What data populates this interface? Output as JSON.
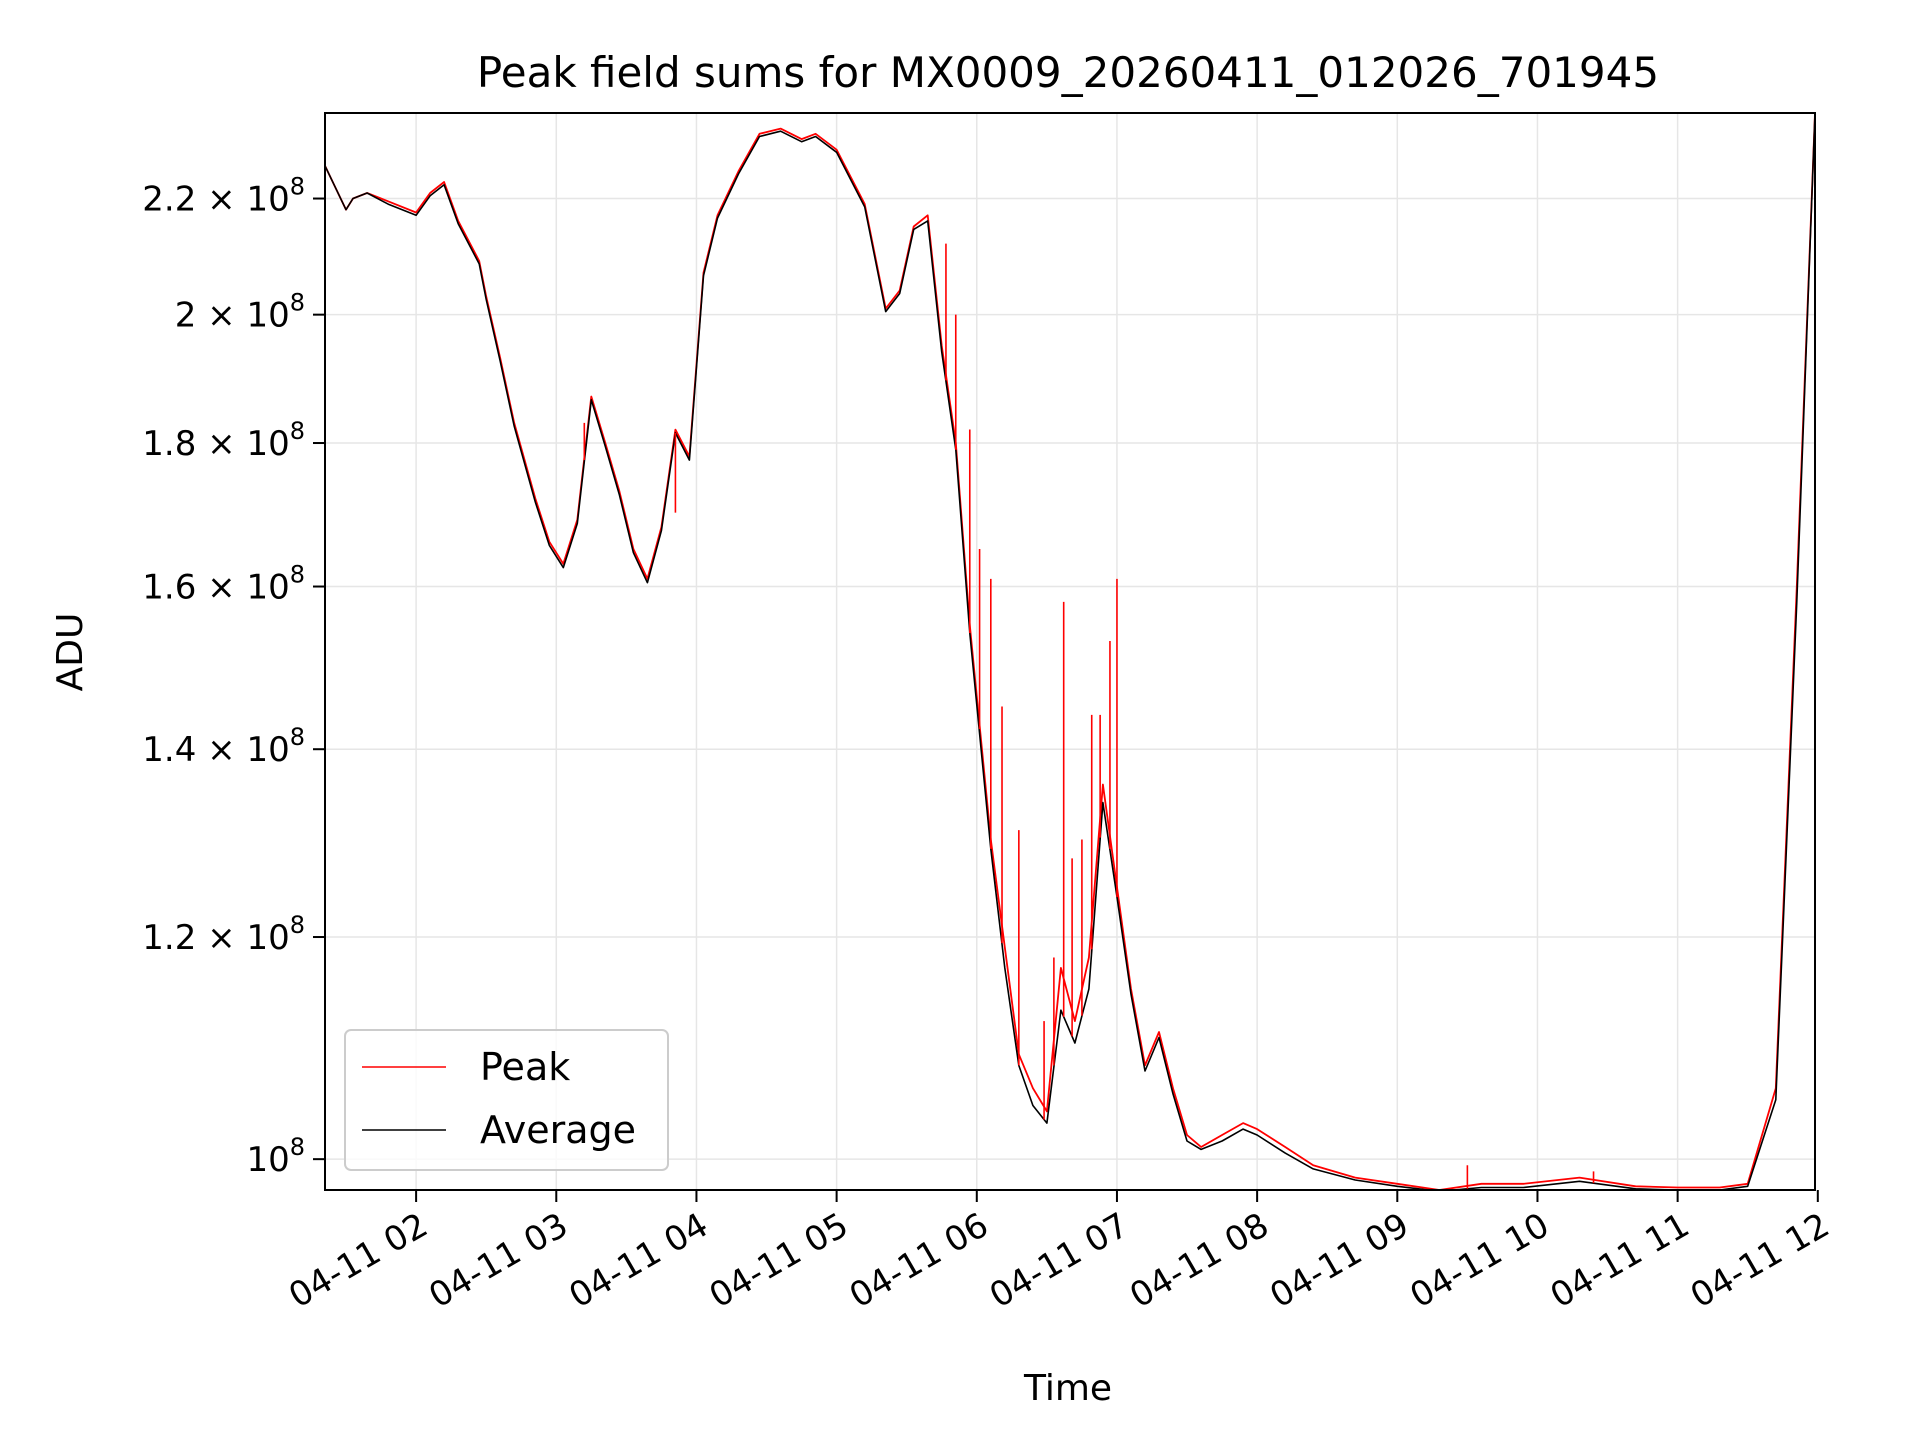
{
  "chart_data": {
    "type": "line",
    "title": "Peak field sums for MX0009_20260411_012026_701945",
    "xlabel": "Time",
    "ylabel": "ADU",
    "yscale": "log",
    "grid": true,
    "legend_position": "lower-left",
    "x_unit": "hours since 04-11 00:00",
    "xlim": [
      1.35,
      11.98
    ],
    "ylim": [
      97500000,
      236000000
    ],
    "x_ticks": [
      {
        "value": 2,
        "label": "04-11 02"
      },
      {
        "value": 3,
        "label": "04-11 03"
      },
      {
        "value": 4,
        "label": "04-11 04"
      },
      {
        "value": 5,
        "label": "04-11 05"
      },
      {
        "value": 6,
        "label": "04-11 06"
      },
      {
        "value": 7,
        "label": "04-11 07"
      },
      {
        "value": 8,
        "label": "04-11 08"
      },
      {
        "value": 9,
        "label": "04-11 09"
      },
      {
        "value": 10,
        "label": "04-11 10"
      },
      {
        "value": 11,
        "label": "04-11 11"
      },
      {
        "value": 12,
        "label": "04-11 12"
      }
    ],
    "y_ticks": [
      {
        "value": 100000000,
        "mantissa": "",
        "exponent": "8"
      },
      {
        "value": 120000000,
        "mantissa": "1.2",
        "exponent": "8"
      },
      {
        "value": 140000000,
        "mantissa": "1.4",
        "exponent": "8"
      },
      {
        "value": 160000000,
        "mantissa": "1.6",
        "exponent": "8"
      },
      {
        "value": 180000000,
        "mantissa": "1.8",
        "exponent": "8"
      },
      {
        "value": 200000000,
        "mantissa": "2",
        "exponent": "8"
      },
      {
        "value": 220000000,
        "mantissa": "2.2",
        "exponent": "8"
      }
    ],
    "y_tick_base": "10",
    "y_tick_times": "×",
    "series": [
      {
        "name": "Peak",
        "color": "#ff0000",
        "x": [
          1.35,
          1.5,
          1.55,
          1.65,
          1.8,
          2.0,
          2.1,
          2.2,
          2.3,
          2.45,
          2.5,
          2.6,
          2.7,
          2.85,
          2.95,
          3.05,
          3.15,
          3.25,
          3.35,
          3.45,
          3.55,
          3.65,
          3.75,
          3.85,
          3.95,
          4.05,
          4.15,
          4.3,
          4.45,
          4.6,
          4.75,
          4.85,
          5.0,
          5.2,
          5.35,
          5.45,
          5.55,
          5.65,
          5.75,
          5.85,
          5.95,
          6.1,
          6.2,
          6.3,
          6.4,
          6.5,
          6.6,
          6.7,
          6.8,
          6.9,
          7.0,
          7.1,
          7.2,
          7.3,
          7.4,
          7.5,
          7.6,
          7.75,
          7.9,
          8.0,
          8.2,
          8.4,
          8.7,
          9.0,
          9.3,
          9.6,
          9.9,
          10.3,
          10.7,
          11.0,
          11.3,
          11.5,
          11.7,
          11.85,
          11.98
        ],
        "y": [
          226000000,
          218000000,
          220000000,
          221000000,
          219500000,
          217500000,
          221000000,
          223000000,
          216000000,
          209000000,
          203000000,
          193000000,
          183000000,
          172000000,
          166000000,
          163000000,
          169000000,
          187000000,
          180000000,
          173000000,
          165000000,
          161000000,
          168000000,
          182000000,
          178000000,
          207000000,
          217000000,
          225000000,
          232000000,
          233000000,
          231000000,
          232000000,
          229000000,
          219000000,
          201000000,
          204000000,
          215000000,
          217000000,
          195000000,
          180000000,
          155000000,
          130000000,
          119000000,
          109000000,
          106000000,
          104000000,
          117000000,
          112000000,
          118000000,
          136000000,
          125000000,
          115000000,
          108000000,
          111000000,
          106000000,
          102000000,
          101000000,
          102000000,
          103000000,
          102500000,
          101000000,
          99500000,
          98500000,
          98000000,
          97500000,
          98000000,
          98000000,
          98500000,
          97800000,
          97700000,
          97700000,
          98000000,
          106000000,
          160000000,
          236000000
        ]
      },
      {
        "name": "Average",
        "color": "#000000",
        "x": [
          1.35,
          1.5,
          1.55,
          1.65,
          1.8,
          2.0,
          2.1,
          2.2,
          2.3,
          2.45,
          2.5,
          2.6,
          2.7,
          2.85,
          2.95,
          3.05,
          3.15,
          3.25,
          3.35,
          3.45,
          3.55,
          3.65,
          3.75,
          3.85,
          3.95,
          4.05,
          4.15,
          4.3,
          4.45,
          4.6,
          4.75,
          4.85,
          5.0,
          5.2,
          5.35,
          5.45,
          5.55,
          5.65,
          5.75,
          5.85,
          5.95,
          6.1,
          6.2,
          6.3,
          6.4,
          6.5,
          6.6,
          6.7,
          6.8,
          6.9,
          7.0,
          7.1,
          7.2,
          7.3,
          7.4,
          7.5,
          7.6,
          7.75,
          7.9,
          8.0,
          8.2,
          8.4,
          8.7,
          9.0,
          9.3,
          9.6,
          9.9,
          10.3,
          10.7,
          11.0,
          11.3,
          11.5,
          11.7,
          11.85,
          11.98
        ],
        "y": [
          226000000,
          218000000,
          220000000,
          221000000,
          219000000,
          217000000,
          220500000,
          222500000,
          215500000,
          208500000,
          202500000,
          192500000,
          182500000,
          171500000,
          165500000,
          162500000,
          168500000,
          186500000,
          179500000,
          172500000,
          164500000,
          160500000,
          167500000,
          181500000,
          177500000,
          206500000,
          216500000,
          224500000,
          231500000,
          232500000,
          230500000,
          231500000,
          228500000,
          218500000,
          200500000,
          203500000,
          214500000,
          216000000,
          194000000,
          179000000,
          154000000,
          129000000,
          117000000,
          108000000,
          104500000,
          103000000,
          113000000,
          110000000,
          115000000,
          134000000,
          124000000,
          114500000,
          107500000,
          110500000,
          105500000,
          101500000,
          100800000,
          101500000,
          102500000,
          102000000,
          100500000,
          99200000,
          98300000,
          97800000,
          97400000,
          97700000,
          97700000,
          98200000,
          97600000,
          97500000,
          97500000,
          97800000,
          105000000,
          158000000,
          236000000
        ]
      }
    ],
    "peak_spikes": [
      {
        "x": 3.2,
        "y": 183000000
      },
      {
        "x": 3.85,
        "y": 170000000
      },
      {
        "x": 5.78,
        "y": 212000000
      },
      {
        "x": 5.85,
        "y": 200000000
      },
      {
        "x": 5.95,
        "y": 182000000
      },
      {
        "x": 6.02,
        "y": 165000000
      },
      {
        "x": 6.1,
        "y": 161000000
      },
      {
        "x": 6.18,
        "y": 145000000
      },
      {
        "x": 6.3,
        "y": 131000000
      },
      {
        "x": 6.48,
        "y": 112000000
      },
      {
        "x": 6.55,
        "y": 118000000
      },
      {
        "x": 6.62,
        "y": 158000000
      },
      {
        "x": 6.68,
        "y": 128000000
      },
      {
        "x": 6.75,
        "y": 130000000
      },
      {
        "x": 6.82,
        "y": 144000000
      },
      {
        "x": 6.88,
        "y": 144000000
      },
      {
        "x": 6.95,
        "y": 153000000
      },
      {
        "x": 7.0,
        "y": 161000000
      },
      {
        "x": 9.5,
        "y": 99500000
      },
      {
        "x": 10.4,
        "y": 99000000
      }
    ]
  }
}
